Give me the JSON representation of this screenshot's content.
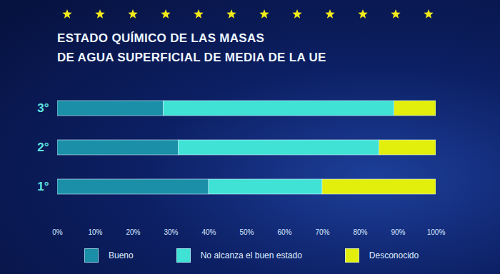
{
  "chart_data": {
    "type": "bar",
    "orientation": "horizontal",
    "stacked": true,
    "title": "ESTADO QUÍMICO DE LAS MASAS\nDE AGUA SUPERFICIAL DE MEDIA DE LA UE",
    "categories": [
      "3°",
      "2°",
      "1°"
    ],
    "series": [
      {
        "name": "Bueno",
        "color": "#1b8fa8",
        "values": [
          28,
          32,
          40
        ]
      },
      {
        "name": "No alcanza el buen estado",
        "color": "#40e2d6",
        "values": [
          61,
          53,
          30
        ]
      },
      {
        "name": "Desconocido",
        "color": "#e2ee0c",
        "values": [
          11,
          15,
          30
        ]
      }
    ],
    "xlim": [
      0,
      100
    ],
    "xticks": [
      {
        "value": 0,
        "label": "0%"
      },
      {
        "value": 10,
        "label": "10%"
      },
      {
        "value": 20,
        "label": "20%"
      },
      {
        "value": 30,
        "label": "30%"
      },
      {
        "value": 40,
        "label": "40%"
      },
      {
        "value": 50,
        "label": "50%"
      },
      {
        "value": 60,
        "label": "60%"
      },
      {
        "value": 70,
        "label": "70%"
      },
      {
        "value": 80,
        "label": "80%"
      },
      {
        "value": 90,
        "label": "90%"
      },
      {
        "value": 100,
        "label": "100%"
      }
    ],
    "grid": false,
    "legend": "bottom"
  }
}
